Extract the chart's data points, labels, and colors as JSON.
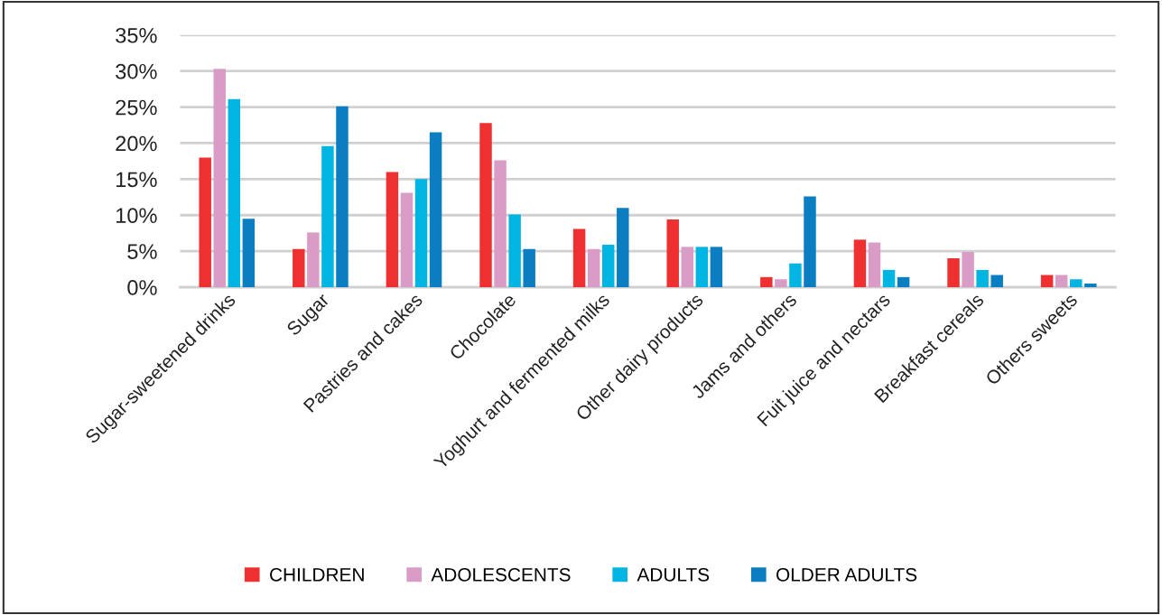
{
  "chart_data": {
    "type": "bar",
    "categories": [
      "Sugar-sweetened drinks",
      "Sugar",
      "Pastries and cakes",
      "Chocolate",
      "Yoghurt and fermented milks",
      "Other dairy products",
      "Jams and others",
      "Fuit juice and nectars",
      "Breakfast cereals",
      "Others sweets"
    ],
    "series": [
      {
        "name": "CHILDREN",
        "color": "#ee3130",
        "values": [
          18.0,
          5.3,
          16.0,
          22.8,
          8.1,
          9.4,
          1.4,
          6.6,
          4.0,
          1.7
        ]
      },
      {
        "name": "ADOLESCENTS",
        "color": "#d99cc6",
        "values": [
          30.3,
          7.6,
          13.1,
          17.6,
          5.3,
          5.6,
          1.1,
          6.2,
          4.9,
          1.7
        ]
      },
      {
        "name": "ADULTS",
        "color": "#00b5e2",
        "values": [
          26.1,
          19.6,
          15.0,
          10.1,
          5.9,
          5.6,
          3.3,
          2.4,
          2.4,
          1.1
        ]
      },
      {
        "name": "OLDER ADULTS",
        "color": "#0a7ec1",
        "values": [
          9.5,
          25.1,
          21.5,
          5.3,
          11.0,
          5.6,
          12.6,
          1.4,
          1.7,
          0.5
        ]
      }
    ],
    "ylim": [
      0,
      35
    ],
    "yticks": [
      {
        "value": 0,
        "label": "0%"
      },
      {
        "value": 5,
        "label": "5%"
      },
      {
        "value": 10,
        "label": "10%"
      },
      {
        "value": 15,
        "label": "15%"
      },
      {
        "value": 20,
        "label": "20%"
      },
      {
        "value": 25,
        "label": "25%"
      },
      {
        "value": 30,
        "label": "30%"
      },
      {
        "value": 35,
        "label": "35%"
      }
    ],
    "grid": "y",
    "legend": "bottom"
  }
}
